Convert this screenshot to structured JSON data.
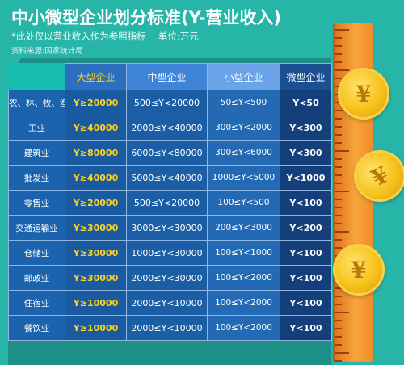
{
  "header": {
    "title": "中小微型企业划分标准(Y-营业收入)",
    "subtitle": "*此处仅以营业收入作为参照指标　 单位:万元",
    "source": "资料来源:国家统计局"
  },
  "table": {
    "columns": [
      "",
      "大型企业",
      "中型企业",
      "小型企业",
      "微型企业"
    ],
    "rows": [
      {
        "industry": "农、林、牧、渔业",
        "large": "Y≥20000",
        "medium": "500≤Y<20000",
        "small": "50≤Y<500",
        "micro": "Y<50"
      },
      {
        "industry": "工业",
        "large": "Y≥40000",
        "medium": "2000≤Y<40000",
        "small": "300≤Y<2000",
        "micro": "Y<300"
      },
      {
        "industry": "建筑业",
        "large": "Y≥80000",
        "medium": "6000≤Y<80000",
        "small": "300≤Y<6000",
        "micro": "Y<300"
      },
      {
        "industry": "批发业",
        "large": "Y≥40000",
        "medium": "5000≤Y<40000",
        "small": "1000≤Y<5000",
        "micro": "Y<1000"
      },
      {
        "industry": "零售业",
        "large": "Y≥20000",
        "medium": "500≤Y<20000",
        "small": "100≤Y<500",
        "micro": "Y<100"
      },
      {
        "industry": "交通运输业",
        "large": "Y≥30000",
        "medium": "3000≤Y<30000",
        "small": "200≤Y<3000",
        "micro": "Y<200"
      },
      {
        "industry": "仓储业",
        "large": "Y≥30000",
        "medium": "1000≤Y<30000",
        "small": "100≤Y<1000",
        "micro": "Y<100"
      },
      {
        "industry": "邮政业",
        "large": "Y≥30000",
        "medium": "2000≤Y<30000",
        "small": "100≤Y<2000",
        "micro": "Y<100"
      },
      {
        "industry": "住宿业",
        "large": "Y≥10000",
        "medium": "2000≤Y<10000",
        "small": "100≤Y<2000",
        "micro": "Y<100"
      },
      {
        "industry": "餐饮业",
        "large": "Y≥10000",
        "medium": "2000≤Y<10000",
        "small": "100≤Y<2000",
        "micro": "Y<100"
      }
    ]
  },
  "decoration": {
    "coin_symbol": "¥",
    "coin_icon": "yuan-coin-icon",
    "ruler_icon": "ruler-icon"
  },
  "colors": {
    "background": "#27b5a8",
    "table_blue": "#1a5fa6",
    "large_text": "#ffd21a",
    "ruler": "#f7a63b",
    "coin": "#f7c21c"
  }
}
